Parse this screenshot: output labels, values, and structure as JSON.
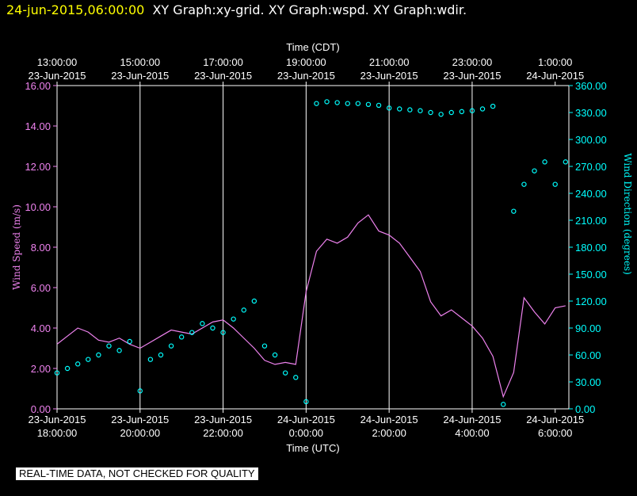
{
  "header": {
    "timestamp": "24-jun-2015,06:00:00",
    "graphs": "XY Graph:xy-grid.  XY Graph:wspd.  XY Graph:wdir."
  },
  "notice": "REAL-TIME DATA, NOT CHECKED FOR QUALITY",
  "chart_data": {
    "type": "line",
    "top_axis_title": "Time (CDT)",
    "bottom_axis_title": "Time (UTC)",
    "left_axis_title": "Wind Speed (m/s)",
    "right_axis_title": "Wind Direction (degrees)",
    "x_range_utc_hours": [
      18,
      30.33
    ],
    "top_ticks": [
      {
        "time": "13:00:00",
        "date": "23-Jun-2015"
      },
      {
        "time": "15:00:00",
        "date": "23-Jun-2015"
      },
      {
        "time": "17:00:00",
        "date": "23-Jun-2015"
      },
      {
        "time": "19:00:00",
        "date": "23-Jun-2015"
      },
      {
        "time": "21:00:00",
        "date": "23-Jun-2015"
      },
      {
        "time": "23:00:00",
        "date": "23-Jun-2015"
      },
      {
        "time": "1:00:00",
        "date": "24-Jun-2015"
      }
    ],
    "bottom_ticks": [
      {
        "date": "23-Jun-2015",
        "time": "18:00:00"
      },
      {
        "date": "23-Jun-2015",
        "time": "20:00:00"
      },
      {
        "date": "23-Jun-2015",
        "time": "22:00:00"
      },
      {
        "date": "24-Jun-2015",
        "time": "0:00:00"
      },
      {
        "date": "24-Jun-2015",
        "time": "2:00:00"
      },
      {
        "date": "24-Jun-2015",
        "time": "4:00:00"
      },
      {
        "date": "24-Jun-2015",
        "time": "6:00:00"
      }
    ],
    "left_ticks": [
      "0.00",
      "2.00",
      "4.00",
      "6.00",
      "8.00",
      "10.00",
      "12.00",
      "14.00",
      "16.00"
    ],
    "right_ticks": [
      "0.00",
      "30.00",
      "60.00",
      "90.00",
      "120.00",
      "150.00",
      "180.00",
      "210.00",
      "240.00",
      "270.00",
      "300.00",
      "330.00",
      "360.00"
    ],
    "left_range": [
      0,
      16
    ],
    "right_range": [
      0,
      360
    ],
    "grid": "vertical lines at bottom tick times",
    "series": [
      {
        "name": "wspd",
        "axis": "left",
        "color": "#ee82ee",
        "style": "line",
        "x": [
          18.0,
          18.25,
          18.5,
          18.75,
          19.0,
          19.25,
          19.5,
          19.75,
          20.0,
          20.25,
          20.5,
          20.75,
          21.0,
          21.25,
          21.5,
          21.75,
          22.0,
          22.25,
          22.5,
          22.75,
          23.0,
          23.25,
          23.5,
          23.75,
          24.0,
          24.25,
          24.5,
          24.75,
          25.0,
          25.25,
          25.5,
          25.75,
          26.0,
          26.25,
          26.5,
          26.75,
          27.0,
          27.25,
          27.5,
          27.75,
          28.0,
          28.25,
          28.5,
          28.75,
          29.0,
          29.25,
          29.5,
          29.75,
          30.0,
          30.25
        ],
        "y": [
          3.2,
          3.6,
          4.0,
          3.8,
          3.4,
          3.3,
          3.5,
          3.2,
          3.0,
          3.3,
          3.6,
          3.9,
          3.8,
          3.7,
          4.0,
          4.3,
          4.4,
          4.0,
          3.5,
          3.0,
          2.4,
          2.2,
          2.3,
          2.2,
          5.8,
          7.8,
          8.4,
          8.2,
          8.5,
          9.2,
          9.6,
          8.8,
          8.6,
          8.2,
          7.5,
          6.8,
          5.3,
          4.6,
          4.9,
          4.5,
          4.1,
          3.5,
          2.6,
          0.6,
          1.8,
          5.5,
          4.8,
          4.2,
          5.0,
          5.1
        ]
      },
      {
        "name": "wdir",
        "axis": "right",
        "color": "#00ffff",
        "style": "circles",
        "x": [
          18.0,
          18.25,
          18.5,
          18.75,
          19.0,
          19.25,
          19.5,
          19.75,
          20.0,
          20.25,
          20.5,
          20.75,
          21.0,
          21.25,
          21.5,
          21.75,
          22.0,
          22.25,
          22.5,
          22.75,
          23.0,
          23.25,
          23.5,
          23.75,
          24.0,
          24.25,
          24.5,
          24.75,
          25.0,
          25.25,
          25.5,
          25.75,
          26.0,
          26.25,
          26.5,
          26.75,
          27.0,
          27.25,
          27.5,
          27.75,
          28.0,
          28.25,
          28.5,
          28.75,
          29.0,
          29.25,
          29.5,
          29.75,
          30.0,
          30.25
        ],
        "y": [
          40,
          45,
          50,
          55,
          60,
          70,
          65,
          75,
          20,
          55,
          60,
          70,
          80,
          85,
          95,
          90,
          85,
          100,
          110,
          120,
          70,
          60,
          40,
          35,
          8,
          340,
          342,
          341,
          340,
          340,
          339,
          338,
          335,
          334,
          333,
          332,
          330,
          328,
          330,
          331,
          332,
          334,
          337,
          5,
          220,
          250,
          265,
          275,
          250,
          275
        ]
      }
    ]
  }
}
